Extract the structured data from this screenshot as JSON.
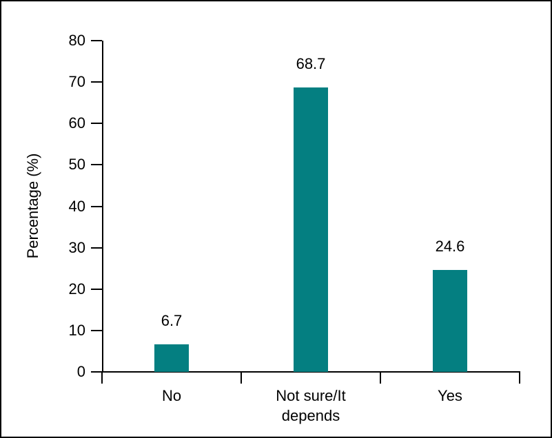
{
  "chart_data": {
    "type": "bar",
    "title": "",
    "xlabel": "",
    "ylabel": "Percentage (%)",
    "categories": [
      "No",
      "Not sure/It depends",
      "Yes"
    ],
    "category_display": [
      "No",
      "Not sure/It\ndepends",
      "Yes"
    ],
    "values": [
      6.7,
      68.7,
      24.6
    ],
    "value_labels": [
      "6.7",
      "68.7",
      "24.6"
    ],
    "ylim": [
      0,
      80
    ],
    "yticks": [
      0,
      10,
      20,
      30,
      40,
      50,
      60,
      70,
      80
    ],
    "grid": false,
    "legend": false,
    "bar_color": "#047f81",
    "axis_color": "#000000",
    "text_color": "#000000",
    "background_color": "#ffffff"
  }
}
